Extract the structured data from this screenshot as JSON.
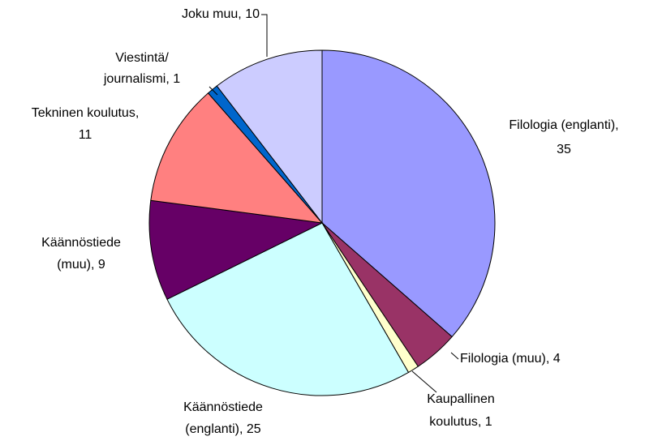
{
  "chart_data": {
    "type": "pie",
    "values": [
      35,
      4,
      1,
      25,
      9,
      11,
      1,
      10
    ],
    "value_labels": [
      [
        "Filologia (englanti),",
        "35"
      ],
      [
        "Filologia (muu), 4"
      ],
      [
        "Kaupallinen",
        "koulutus, 1"
      ],
      [
        "Käännöstiede",
        "(englanti), 25"
      ],
      [
        "Käännöstiede",
        "(muu), 9"
      ],
      [
        "Tekninen koulutus,",
        "11"
      ],
      [
        "Viestintä/",
        "journalismi, 1"
      ],
      [
        "Joku muu, 10"
      ]
    ],
    "colors": [
      "#9999ff",
      "#993366",
      "#ffffcc",
      "#ccffff",
      "#660066",
      "#ff8080",
      "#0066cc",
      "#ccccff"
    ]
  }
}
